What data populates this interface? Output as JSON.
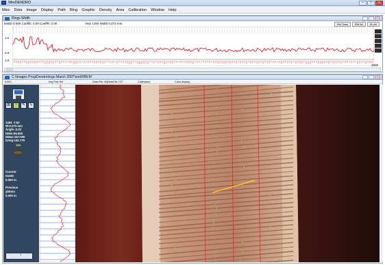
{
  "app": {
    "title": "WinDENDRO"
  },
  "menu": [
    "Misc",
    "Data",
    "Image",
    "Display",
    "Path",
    "Ring",
    "Graphic",
    "Density",
    "Area",
    "Calibration",
    "Window",
    "Help"
  ],
  "ring_window": {
    "title": "Rings Width",
    "status_left": "testID 0.000  CoeffD: 0.00  CoeffR: 0.00",
    "status_mid": "Year 1494  Width 0.273 mm",
    "buttons": [
      "Ref Data",
      "RW All",
      "Sh All"
    ],
    "y_labels": [
      "1.0",
      "0.0",
      "1.0"
    ],
    "x_end_label": "2008"
  },
  "image_window": {
    "title": "C:\\Images Prog\\Dendro\\Ingo March 2007\\sodX8W.tif",
    "toolbar": [
      "6.600",
      "Img Pref  Set",
      "Data File: MyDataFile.TXT",
      "Calibration:",
      "Color display:"
    ],
    "info_block": "1494  #:52\nW:0.273 mm\nAngle:-3.22\nDMin:95.000\nDMax:167.000\nDAvg:142.779",
    "info_value": "164",
    "current_label": "Current",
    "current_id": "testID",
    "current_value": "0.000 m",
    "previous_label": "Previous",
    "previous_id": "ybhsts",
    "previous_value": "0.000 m",
    "footer_value": "1"
  },
  "colors": {
    "series": "#e0001b",
    "titlebar": "#c9d8ee",
    "panel": "#31465f"
  }
}
